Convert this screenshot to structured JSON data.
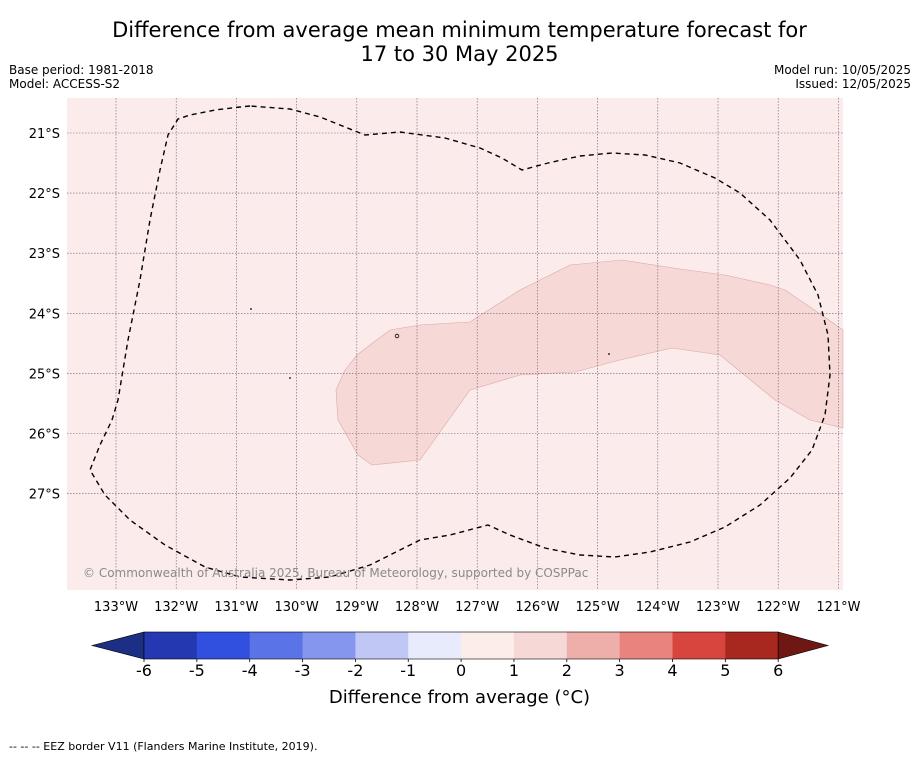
{
  "title": {
    "line1": "Difference from average mean minimum temperature forecast for",
    "line2": "17 to 30 May 2025"
  },
  "meta": {
    "base_period": "Base period: 1981-2018",
    "model": "Model: ACCESS-S2",
    "model_run": "Model run: 10/05/2025",
    "issued": "Issued: 12/05/2025"
  },
  "map": {
    "lon_ticks": [
      "133°W",
      "132°W",
      "131°W",
      "130°W",
      "129°W",
      "128°W",
      "127°W",
      "126°W",
      "125°W",
      "124°W",
      "123°W",
      "122°W",
      "121°W"
    ],
    "lat_ticks": [
      "21°S",
      "22°S",
      "23°S",
      "24°S",
      "25°S",
      "26°S",
      "27°S"
    ],
    "copyright": "© Commonwealth of Australia 2025, Bureau of Meteorology, supported by COSPPac",
    "background_category": "0 to 1",
    "background_color": "#fbeceb",
    "anomaly_region_category": "1 to 2",
    "anomaly_region_color": "#f6d8d7",
    "border_style": "dashed"
  },
  "colorbar": {
    "ticks": [
      "-6",
      "-5",
      "-4",
      "-3",
      "-2",
      "-1",
      "0",
      "1",
      "2",
      "3",
      "4",
      "5",
      "6"
    ],
    "colors": [
      "#1c2f85",
      "#2439b1",
      "#3150df",
      "#5a73e6",
      "#8596ee",
      "#c0c7f5",
      "#e8ebfb",
      "#fcecea",
      "#f6d8d7",
      "#eeaeaa",
      "#e9837d",
      "#d8453e",
      "#a82820",
      "#6f1712"
    ],
    "label": "Difference from average (°C)"
  },
  "footnote": "--  --  -- EEZ border V11 (Flanders Marine Institute, 2019)."
}
